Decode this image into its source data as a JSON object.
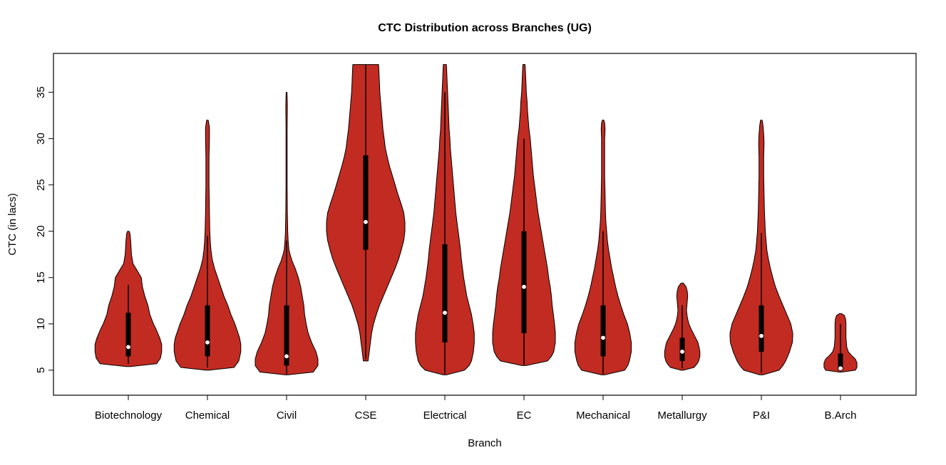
{
  "chart_data": {
    "type": "violin",
    "title": "CTC Distribution across Branches (UG)",
    "xlabel": "Branch",
    "ylabel": "CTC (in lacs)",
    "y_ticks": [
      5,
      10,
      15,
      20,
      25,
      30,
      35
    ],
    "y_range": [
      2.3,
      39.2
    ],
    "grid": false,
    "legend": "none",
    "colors": {
      "fill": "#C22B21",
      "stroke": "#000000",
      "box": "#000000",
      "median_dot": "#FFFFFF"
    },
    "categories": [
      "Biotechnology",
      "Chemical",
      "Civil",
      "CSE",
      "Electrical",
      "EC",
      "Mechanical",
      "Metallurgy",
      "P&I",
      "B.Arch"
    ],
    "violins": [
      {
        "name": "Biotechnology",
        "min": 5.4,
        "max": 20,
        "median": 7.5,
        "q1": 6.5,
        "q3": 11.2,
        "whisker_low": 5.7,
        "whisker_high": 14.2,
        "profile": [
          [
            5.4,
            0.05
          ],
          [
            5.7,
            0.72
          ],
          [
            6.3,
            0.82
          ],
          [
            7,
            0.85
          ],
          [
            7.8,
            0.85
          ],
          [
            8.5,
            0.8
          ],
          [
            9.5,
            0.7
          ],
          [
            10,
            0.64
          ],
          [
            11,
            0.55
          ],
          [
            12,
            0.5
          ],
          [
            13,
            0.42
          ],
          [
            14,
            0.36
          ],
          [
            15,
            0.33
          ],
          [
            15.8,
            0.22
          ],
          [
            16.5,
            0.12
          ],
          [
            17.5,
            0.08
          ],
          [
            19,
            0.06
          ],
          [
            19.8,
            0.04
          ],
          [
            20,
            0.02
          ]
        ]
      },
      {
        "name": "Chemical",
        "min": 5.0,
        "max": 32,
        "median": 8.0,
        "q1": 6.5,
        "q3": 12,
        "whisker_low": 5.3,
        "whisker_high": 19.5,
        "profile": [
          [
            5.0,
            0.03
          ],
          [
            5.3,
            0.68
          ],
          [
            6,
            0.8
          ],
          [
            7,
            0.85
          ],
          [
            7.8,
            0.85
          ],
          [
            8.5,
            0.82
          ],
          [
            9,
            0.78
          ],
          [
            10,
            0.7
          ],
          [
            11,
            0.6
          ],
          [
            12,
            0.52
          ],
          [
            13,
            0.42
          ],
          [
            14,
            0.34
          ],
          [
            15,
            0.26
          ],
          [
            16,
            0.18
          ],
          [
            17,
            0.12
          ],
          [
            18,
            0.09
          ],
          [
            19,
            0.07
          ],
          [
            20,
            0.06
          ],
          [
            22,
            0.05
          ],
          [
            25,
            0.04
          ],
          [
            28,
            0.04
          ],
          [
            30,
            0.05
          ],
          [
            31.2,
            0.05
          ],
          [
            32,
            0.02
          ]
        ]
      },
      {
        "name": "Civil",
        "min": 4.5,
        "max": 35,
        "median": 6.5,
        "q1": 5.5,
        "q3": 12,
        "whisker_low": 4.6,
        "whisker_high": 19,
        "profile": [
          [
            4.5,
            0.03
          ],
          [
            4.8,
            0.68
          ],
          [
            5.5,
            0.8
          ],
          [
            6.2,
            0.8
          ],
          [
            7,
            0.75
          ],
          [
            8,
            0.64
          ],
          [
            9,
            0.55
          ],
          [
            10,
            0.5
          ],
          [
            11,
            0.46
          ],
          [
            12,
            0.44
          ],
          [
            13,
            0.4
          ],
          [
            14,
            0.36
          ],
          [
            15,
            0.3
          ],
          [
            16,
            0.22
          ],
          [
            16.8,
            0.14
          ],
          [
            17.5,
            0.09
          ],
          [
            18,
            0.06
          ],
          [
            19,
            0.04
          ],
          [
            20,
            0.03
          ],
          [
            22,
            0.02
          ],
          [
            25,
            0.015
          ],
          [
            28,
            0.015
          ],
          [
            31,
            0.015
          ],
          [
            33.5,
            0.02
          ],
          [
            34.5,
            0.015
          ],
          [
            35,
            0.01
          ]
        ]
      },
      {
        "name": "CSE",
        "min": 6,
        "max": 38,
        "median": 21,
        "q1": 18,
        "q3": 28.2,
        "whisker_low": 6.2,
        "whisker_high": 38,
        "profile": [
          [
            6,
            0.06
          ],
          [
            7,
            0.09
          ],
          [
            8,
            0.12
          ],
          [
            9,
            0.15
          ],
          [
            10,
            0.2
          ],
          [
            11,
            0.27
          ],
          [
            12,
            0.35
          ],
          [
            13,
            0.45
          ],
          [
            14,
            0.55
          ],
          [
            15,
            0.65
          ],
          [
            16,
            0.75
          ],
          [
            17,
            0.84
          ],
          [
            18,
            0.91
          ],
          [
            19,
            0.97
          ],
          [
            20,
            1.0
          ],
          [
            21,
            1.0
          ],
          [
            22,
            0.97
          ],
          [
            23,
            0.9
          ],
          [
            24,
            0.82
          ],
          [
            25,
            0.75
          ],
          [
            26,
            0.68
          ],
          [
            27,
            0.61
          ],
          [
            28,
            0.55
          ],
          [
            29,
            0.5
          ],
          [
            30,
            0.47
          ],
          [
            31,
            0.44
          ],
          [
            32,
            0.42
          ],
          [
            33,
            0.4
          ],
          [
            34,
            0.38
          ],
          [
            35,
            0.36
          ],
          [
            36,
            0.35
          ],
          [
            37,
            0.34
          ],
          [
            38,
            0.33
          ]
        ]
      },
      {
        "name": "Electrical",
        "min": 4.5,
        "max": 38,
        "median": 11.2,
        "q1": 8,
        "q3": 18.6,
        "whisker_low": 4.6,
        "whisker_high": 35,
        "profile": [
          [
            4.5,
            0.04
          ],
          [
            5,
            0.5
          ],
          [
            5.5,
            0.62
          ],
          [
            6,
            0.68
          ],
          [
            7,
            0.73
          ],
          [
            8,
            0.75
          ],
          [
            9,
            0.75
          ],
          [
            10,
            0.72
          ],
          [
            11,
            0.68
          ],
          [
            12,
            0.62
          ],
          [
            13,
            0.56
          ],
          [
            14,
            0.52
          ],
          [
            15,
            0.48
          ],
          [
            16,
            0.45
          ],
          [
            17,
            0.42
          ],
          [
            18,
            0.4
          ],
          [
            19,
            0.37
          ],
          [
            20,
            0.34
          ],
          [
            21,
            0.31
          ],
          [
            22,
            0.28
          ],
          [
            23,
            0.26
          ],
          [
            24,
            0.24
          ],
          [
            25,
            0.22
          ],
          [
            26,
            0.2
          ],
          [
            27,
            0.18
          ],
          [
            28,
            0.16
          ],
          [
            29,
            0.14
          ],
          [
            30,
            0.13
          ],
          [
            31,
            0.11
          ],
          [
            32,
            0.1
          ],
          [
            33,
            0.09
          ],
          [
            34,
            0.08
          ],
          [
            35,
            0.07
          ],
          [
            36,
            0.06
          ],
          [
            37,
            0.05
          ],
          [
            38,
            0.04
          ]
        ]
      },
      {
        "name": "EC",
        "min": 5.5,
        "max": 38,
        "median": 14,
        "q1": 9,
        "q3": 20,
        "whisker_low": 5.6,
        "whisker_high": 30,
        "profile": [
          [
            5.5,
            0.05
          ],
          [
            6,
            0.6
          ],
          [
            6.5,
            0.7
          ],
          [
            7,
            0.76
          ],
          [
            8,
            0.8
          ],
          [
            9,
            0.8
          ],
          [
            10,
            0.78
          ],
          [
            11,
            0.75
          ],
          [
            12,
            0.72
          ],
          [
            13,
            0.7
          ],
          [
            14,
            0.67
          ],
          [
            15,
            0.63
          ],
          [
            16,
            0.6
          ],
          [
            17,
            0.56
          ],
          [
            18,
            0.52
          ],
          [
            19,
            0.48
          ],
          [
            20,
            0.44
          ],
          [
            21,
            0.4
          ],
          [
            22,
            0.36
          ],
          [
            23,
            0.33
          ],
          [
            24,
            0.3
          ],
          [
            25,
            0.27
          ],
          [
            26,
            0.24
          ],
          [
            27,
            0.22
          ],
          [
            28,
            0.2
          ],
          [
            29,
            0.18
          ],
          [
            30,
            0.16
          ],
          [
            31,
            0.13
          ],
          [
            32,
            0.11
          ],
          [
            33,
            0.09
          ],
          [
            34,
            0.08
          ],
          [
            35,
            0.06
          ],
          [
            36,
            0.05
          ],
          [
            37,
            0.04
          ],
          [
            38,
            0.03
          ]
        ]
      },
      {
        "name": "Mechanical",
        "min": 4.5,
        "max": 32,
        "median": 8.5,
        "q1": 6.5,
        "q3": 12,
        "whisker_low": 4.6,
        "whisker_high": 20,
        "profile": [
          [
            4.5,
            0.04
          ],
          [
            5,
            0.55
          ],
          [
            5.5,
            0.63
          ],
          [
            6,
            0.67
          ],
          [
            7,
            0.72
          ],
          [
            8,
            0.72
          ],
          [
            9,
            0.68
          ],
          [
            10,
            0.62
          ],
          [
            11,
            0.53
          ],
          [
            12,
            0.45
          ],
          [
            13,
            0.38
          ],
          [
            14,
            0.32
          ],
          [
            15,
            0.27
          ],
          [
            16,
            0.22
          ],
          [
            17,
            0.18
          ],
          [
            18,
            0.14
          ],
          [
            19,
            0.11
          ],
          [
            20,
            0.09
          ],
          [
            21,
            0.07
          ],
          [
            22,
            0.06
          ],
          [
            24,
            0.05
          ],
          [
            26,
            0.04
          ],
          [
            28,
            0.04
          ],
          [
            30,
            0.04
          ],
          [
            31,
            0.05
          ],
          [
            31.7,
            0.04
          ],
          [
            32,
            0.02
          ]
        ]
      },
      {
        "name": "Metallurgy",
        "min": 5,
        "max": 14.4,
        "median": 7,
        "q1": 6,
        "q3": 8.5,
        "whisker_low": 5.2,
        "whisker_high": 12,
        "profile": [
          [
            5,
            0.03
          ],
          [
            5.3,
            0.3
          ],
          [
            5.7,
            0.38
          ],
          [
            6,
            0.42
          ],
          [
            6.5,
            0.45
          ],
          [
            7,
            0.45
          ],
          [
            7.5,
            0.43
          ],
          [
            8,
            0.4
          ],
          [
            8.5,
            0.34
          ],
          [
            9,
            0.28
          ],
          [
            9.5,
            0.22
          ],
          [
            10,
            0.17
          ],
          [
            10.5,
            0.14
          ],
          [
            11,
            0.12
          ],
          [
            11.5,
            0.11
          ],
          [
            12,
            0.12
          ],
          [
            12.5,
            0.13
          ],
          [
            13,
            0.14
          ],
          [
            13.5,
            0.13
          ],
          [
            14,
            0.1
          ],
          [
            14.4,
            0.03
          ]
        ]
      },
      {
        "name": "P&I",
        "min": 4.5,
        "max": 32,
        "median": 8.7,
        "q1": 7,
        "q3": 12,
        "whisker_low": 4.7,
        "whisker_high": 19.8,
        "profile": [
          [
            4.5,
            0.04
          ],
          [
            5,
            0.45
          ],
          [
            5.5,
            0.55
          ],
          [
            6,
            0.62
          ],
          [
            7,
            0.72
          ],
          [
            8,
            0.79
          ],
          [
            8.7,
            0.8
          ],
          [
            9,
            0.8
          ],
          [
            10,
            0.75
          ],
          [
            11,
            0.65
          ],
          [
            12,
            0.55
          ],
          [
            13,
            0.45
          ],
          [
            14,
            0.36
          ],
          [
            15,
            0.29
          ],
          [
            16,
            0.23
          ],
          [
            17,
            0.18
          ],
          [
            18,
            0.14
          ],
          [
            19,
            0.12
          ],
          [
            20,
            0.1
          ],
          [
            21,
            0.09
          ],
          [
            22,
            0.08
          ],
          [
            24,
            0.07
          ],
          [
            26,
            0.06
          ],
          [
            28,
            0.06
          ],
          [
            29.5,
            0.07
          ],
          [
            30.5,
            0.06
          ],
          [
            31.5,
            0.04
          ],
          [
            32,
            0.02
          ]
        ]
      },
      {
        "name": "B.Arch",
        "min": 4.8,
        "max": 11.1,
        "median": 5.2,
        "q1": 5,
        "q3": 6.8,
        "whisker_low": 4.8,
        "whisker_high": 10,
        "profile": [
          [
            4.8,
            0.03
          ],
          [
            5,
            0.38
          ],
          [
            5.3,
            0.42
          ],
          [
            5.8,
            0.42
          ],
          [
            6.2,
            0.38
          ],
          [
            6.6,
            0.28
          ],
          [
            7,
            0.2
          ],
          [
            7.5,
            0.16
          ],
          [
            8,
            0.15
          ],
          [
            8.5,
            0.14
          ],
          [
            9,
            0.14
          ],
          [
            9.5,
            0.14
          ],
          [
            10,
            0.14
          ],
          [
            10.5,
            0.13
          ],
          [
            10.9,
            0.1
          ],
          [
            11.1,
            0.03
          ]
        ]
      }
    ]
  }
}
